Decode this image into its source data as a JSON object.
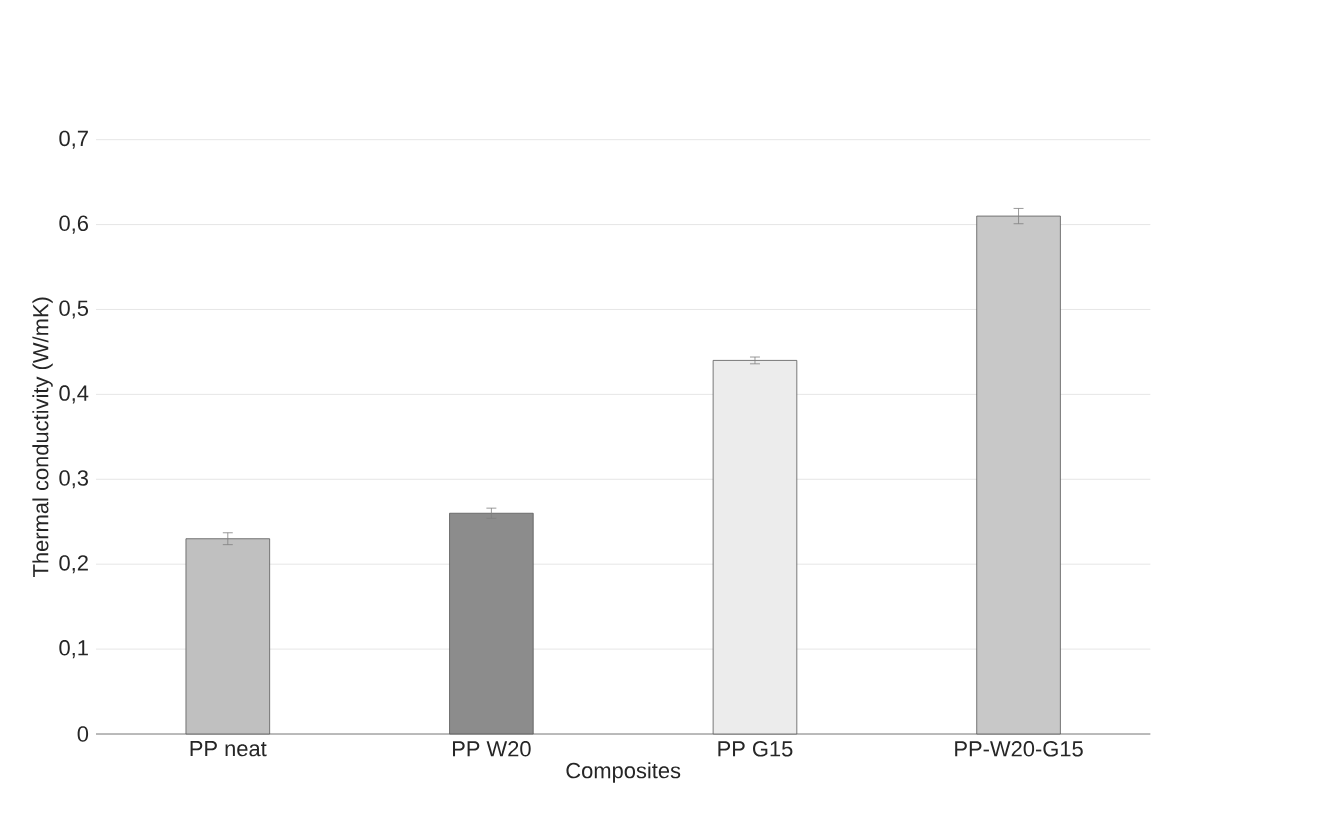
{
  "chart_data": {
    "type": "bar",
    "xlabel": "Composites",
    "ylabel": "Thermal conductivity (W/mK)",
    "categories": [
      "PP neat",
      "PP W20",
      "PP G15",
      "PP-W20-G15"
    ],
    "values": [
      0.23,
      0.26,
      0.44,
      0.61
    ],
    "errors": [
      0.007,
      0.006,
      0.004,
      0.009
    ],
    "colors": [
      "#c0c0c0",
      "#8c8c8c",
      "#ececec",
      "#c8c8c8"
    ],
    "ylim": [
      0,
      0.7
    ],
    "yticks": [
      {
        "value": 0,
        "label": "0"
      },
      {
        "value": 0.1,
        "label": "0,1"
      },
      {
        "value": 0.2,
        "label": "0,2"
      },
      {
        "value": 0.3,
        "label": "0,3"
      },
      {
        "value": 0.4,
        "label": "0,4"
      },
      {
        "value": 0.5,
        "label": "0,5"
      },
      {
        "value": 0.6,
        "label": "0,6"
      },
      {
        "value": 0.7,
        "label": "0,7"
      }
    ],
    "grid": "y"
  }
}
